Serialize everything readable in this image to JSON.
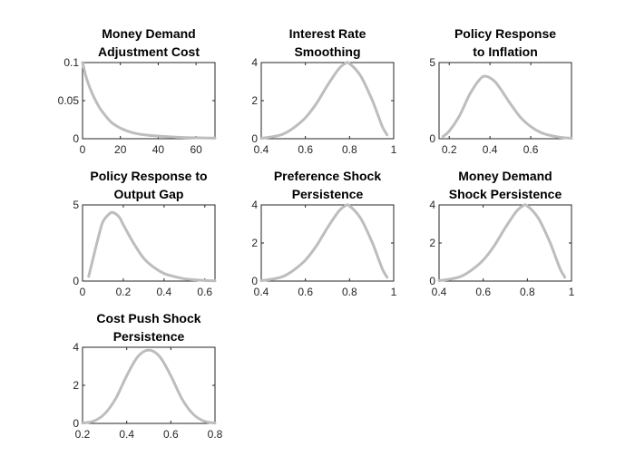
{
  "figure": {
    "background": "#ffffff",
    "line_color": "#bdbdbd"
  },
  "chart_data": [
    {
      "type": "line",
      "title": [
        "Money Demand",
        "Adjustment Cost"
      ],
      "xlim": [
        0,
        70
      ],
      "ylim": [
        0,
        0.1
      ],
      "xticks": [
        0,
        20,
        40,
        60
      ],
      "xtick_labels": [
        "0",
        "20",
        "40",
        "60"
      ],
      "yticks": [
        0,
        0.05,
        0.1
      ],
      "ytick_labels": [
        "0",
        "0.05",
        "0.1"
      ],
      "series": [
        {
          "x": [
            0,
            2,
            5,
            8,
            10,
            15,
            20,
            25,
            30,
            35,
            40,
            50,
            60,
            70
          ],
          "y": [
            0.1,
            0.08,
            0.06,
            0.045,
            0.037,
            0.022,
            0.014,
            0.009,
            0.006,
            0.0045,
            0.0035,
            0.002,
            0.0012,
            0.0008
          ]
        }
      ]
    },
    {
      "type": "line",
      "title": [
        "Interest Rate",
        "Smoothing"
      ],
      "xlim": [
        0.4,
        1
      ],
      "ylim": [
        0,
        4
      ],
      "xticks": [
        0.4,
        0.6,
        0.8,
        1
      ],
      "xtick_labels": [
        "0.4",
        "0.6",
        "0.8",
        "1"
      ],
      "yticks": [
        0,
        2,
        4
      ],
      "ytick_labels": [
        "0",
        "2",
        "4"
      ],
      "series": [
        {
          "x": [
            0.4,
            0.45,
            0.5,
            0.55,
            0.6,
            0.65,
            0.7,
            0.75,
            0.78,
            0.8,
            0.85,
            0.9,
            0.93,
            0.95,
            0.97
          ],
          "y": [
            0.02,
            0.1,
            0.25,
            0.6,
            1.1,
            1.85,
            2.8,
            3.65,
            3.95,
            3.95,
            3.3,
            2.1,
            1.2,
            0.6,
            0.2
          ]
        }
      ]
    },
    {
      "type": "line",
      "title": [
        "Policy Response",
        "to Inflation"
      ],
      "xlim": [
        0.15,
        0.8
      ],
      "ylim": [
        0,
        5
      ],
      "xticks": [
        0.2,
        0.4,
        0.6
      ],
      "xtick_labels": [
        "0.2",
        "0.4",
        "0.6"
      ],
      "yticks": [
        0,
        5
      ],
      "ytick_labels": [
        "0",
        "5"
      ],
      "series": [
        {
          "x": [
            0.17,
            0.2,
            0.25,
            0.3,
            0.35,
            0.38,
            0.42,
            0.45,
            0.5,
            0.55,
            0.6,
            0.65,
            0.7,
            0.75,
            0.8
          ],
          "y": [
            0.15,
            0.5,
            1.5,
            2.9,
            3.9,
            4.1,
            3.8,
            3.3,
            2.3,
            1.4,
            0.8,
            0.4,
            0.2,
            0.08,
            0.03
          ]
        }
      ]
    },
    {
      "type": "line",
      "title": [
        "Policy Response to",
        "Output Gap"
      ],
      "xlim": [
        0,
        0.65
      ],
      "ylim": [
        0,
        5
      ],
      "xticks": [
        0,
        0.2,
        0.4,
        0.6
      ],
      "xtick_labels": [
        "0",
        "0.2",
        "0.4",
        "0.6"
      ],
      "yticks": [
        0,
        5
      ],
      "ytick_labels": [
        "0",
        "5"
      ],
      "series": [
        {
          "x": [
            0.03,
            0.05,
            0.08,
            0.1,
            0.13,
            0.15,
            0.18,
            0.2,
            0.25,
            0.3,
            0.35,
            0.4,
            0.45,
            0.5,
            0.55,
            0.6,
            0.65
          ],
          "y": [
            0.3,
            1.4,
            3.0,
            3.9,
            4.4,
            4.5,
            4.2,
            3.7,
            2.5,
            1.5,
            0.9,
            0.5,
            0.3,
            0.15,
            0.08,
            0.04,
            0.02
          ]
        }
      ]
    },
    {
      "type": "line",
      "title": [
        "Preference Shock",
        "Persistence"
      ],
      "xlim": [
        0.4,
        1
      ],
      "ylim": [
        0,
        4
      ],
      "xticks": [
        0.4,
        0.6,
        0.8,
        1
      ],
      "xtick_labels": [
        "0.4",
        "0.6",
        "0.8",
        "1"
      ],
      "yticks": [
        0,
        2,
        4
      ],
      "ytick_labels": [
        "0",
        "2",
        "4"
      ],
      "series": [
        {
          "x": [
            0.4,
            0.45,
            0.5,
            0.55,
            0.6,
            0.65,
            0.7,
            0.75,
            0.78,
            0.8,
            0.85,
            0.9,
            0.93,
            0.95,
            0.97
          ],
          "y": [
            0.02,
            0.1,
            0.25,
            0.6,
            1.1,
            1.85,
            2.8,
            3.65,
            3.95,
            3.95,
            3.3,
            2.1,
            1.2,
            0.6,
            0.2
          ]
        }
      ]
    },
    {
      "type": "line",
      "title": [
        "Money Demand",
        "Shock Persistence"
      ],
      "xlim": [
        0.4,
        1
      ],
      "ylim": [
        0,
        4
      ],
      "xticks": [
        0.4,
        0.6,
        0.8,
        1
      ],
      "xtick_labels": [
        "0.4",
        "0.6",
        "0.8",
        "1"
      ],
      "yticks": [
        0,
        2,
        4
      ],
      "ytick_labels": [
        "0",
        "2",
        "4"
      ],
      "series": [
        {
          "x": [
            0.4,
            0.45,
            0.5,
            0.55,
            0.6,
            0.65,
            0.7,
            0.75,
            0.78,
            0.8,
            0.85,
            0.9,
            0.93,
            0.95,
            0.97
          ],
          "y": [
            0.02,
            0.1,
            0.25,
            0.6,
            1.1,
            1.85,
            2.8,
            3.65,
            3.95,
            3.95,
            3.3,
            2.1,
            1.2,
            0.6,
            0.2
          ]
        }
      ]
    },
    {
      "type": "line",
      "title": [
        "Cost Push Shock",
        "Persistence"
      ],
      "xlim": [
        0.2,
        0.8
      ],
      "ylim": [
        0,
        4
      ],
      "xticks": [
        0.2,
        0.4,
        0.6,
        0.8
      ],
      "xtick_labels": [
        "0.2",
        "0.4",
        "0.6",
        "0.8"
      ],
      "yticks": [
        0,
        2,
        4
      ],
      "ytick_labels": [
        "0",
        "2",
        "4"
      ],
      "series": [
        {
          "x": [
            0.2,
            0.25,
            0.3,
            0.35,
            0.4,
            0.45,
            0.5,
            0.55,
            0.6,
            0.65,
            0.7,
            0.75,
            0.8
          ],
          "y": [
            0.02,
            0.12,
            0.5,
            1.3,
            2.5,
            3.5,
            3.85,
            3.5,
            2.5,
            1.3,
            0.5,
            0.12,
            0.02
          ]
        }
      ]
    }
  ]
}
